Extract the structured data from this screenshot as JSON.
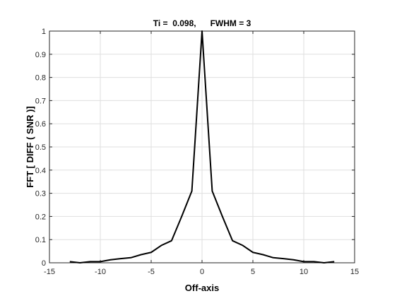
{
  "chart_data": {
    "type": "line",
    "title": "Ti =  0.098,      FWHM = 3",
    "xlabel": "Off-axis",
    "ylabel": "FFT [ DIFF ( SNR )]",
    "xlim": [
      -15,
      15
    ],
    "ylim": [
      0,
      1
    ],
    "xticks": [
      "-15",
      "-10",
      "-5",
      "0",
      "5",
      "10",
      "15"
    ],
    "yticks": [
      "0",
      "0.1",
      "0.2",
      "0.3",
      "0.4",
      "0.5",
      "0.6",
      "0.7",
      "0.8",
      "0.9",
      "1"
    ],
    "grid": true,
    "series": [
      {
        "color": "#000000",
        "x": [
          -13,
          -12,
          -11,
          -10,
          -9,
          -8,
          -7,
          -6,
          -5,
          -4,
          -3,
          -2,
          -1,
          0,
          1,
          2,
          3,
          4,
          5,
          6,
          7,
          8,
          9,
          10,
          11,
          12,
          13
        ],
        "y": [
          0.005,
          0.0,
          0.005,
          0.005,
          0.013,
          0.018,
          0.022,
          0.035,
          0.045,
          0.075,
          0.095,
          0.2,
          0.31,
          1.0,
          0.31,
          0.2,
          0.095,
          0.075,
          0.045,
          0.035,
          0.022,
          0.018,
          0.013,
          0.005,
          0.005,
          0.0,
          0.005
        ]
      }
    ]
  }
}
